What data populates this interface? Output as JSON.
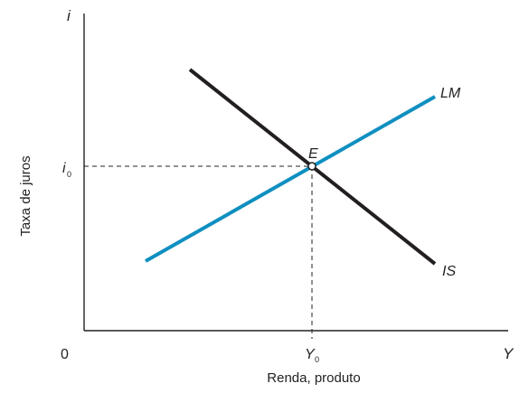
{
  "axes": {
    "y_axis_symbol": "i",
    "x_axis_symbol": "Y",
    "origin_label": "0",
    "y_axis_title": "Taxa de juros",
    "x_axis_title": "Renda, produto"
  },
  "curves": {
    "is_label": "IS",
    "lm_label": "LM",
    "is_color": "#231f20",
    "lm_color": "#0f8fc0"
  },
  "equilibrium": {
    "point_label": "E",
    "i_letter": "i",
    "i_sub": "0",
    "y_letter": "Y",
    "y_sub": "0"
  }
}
